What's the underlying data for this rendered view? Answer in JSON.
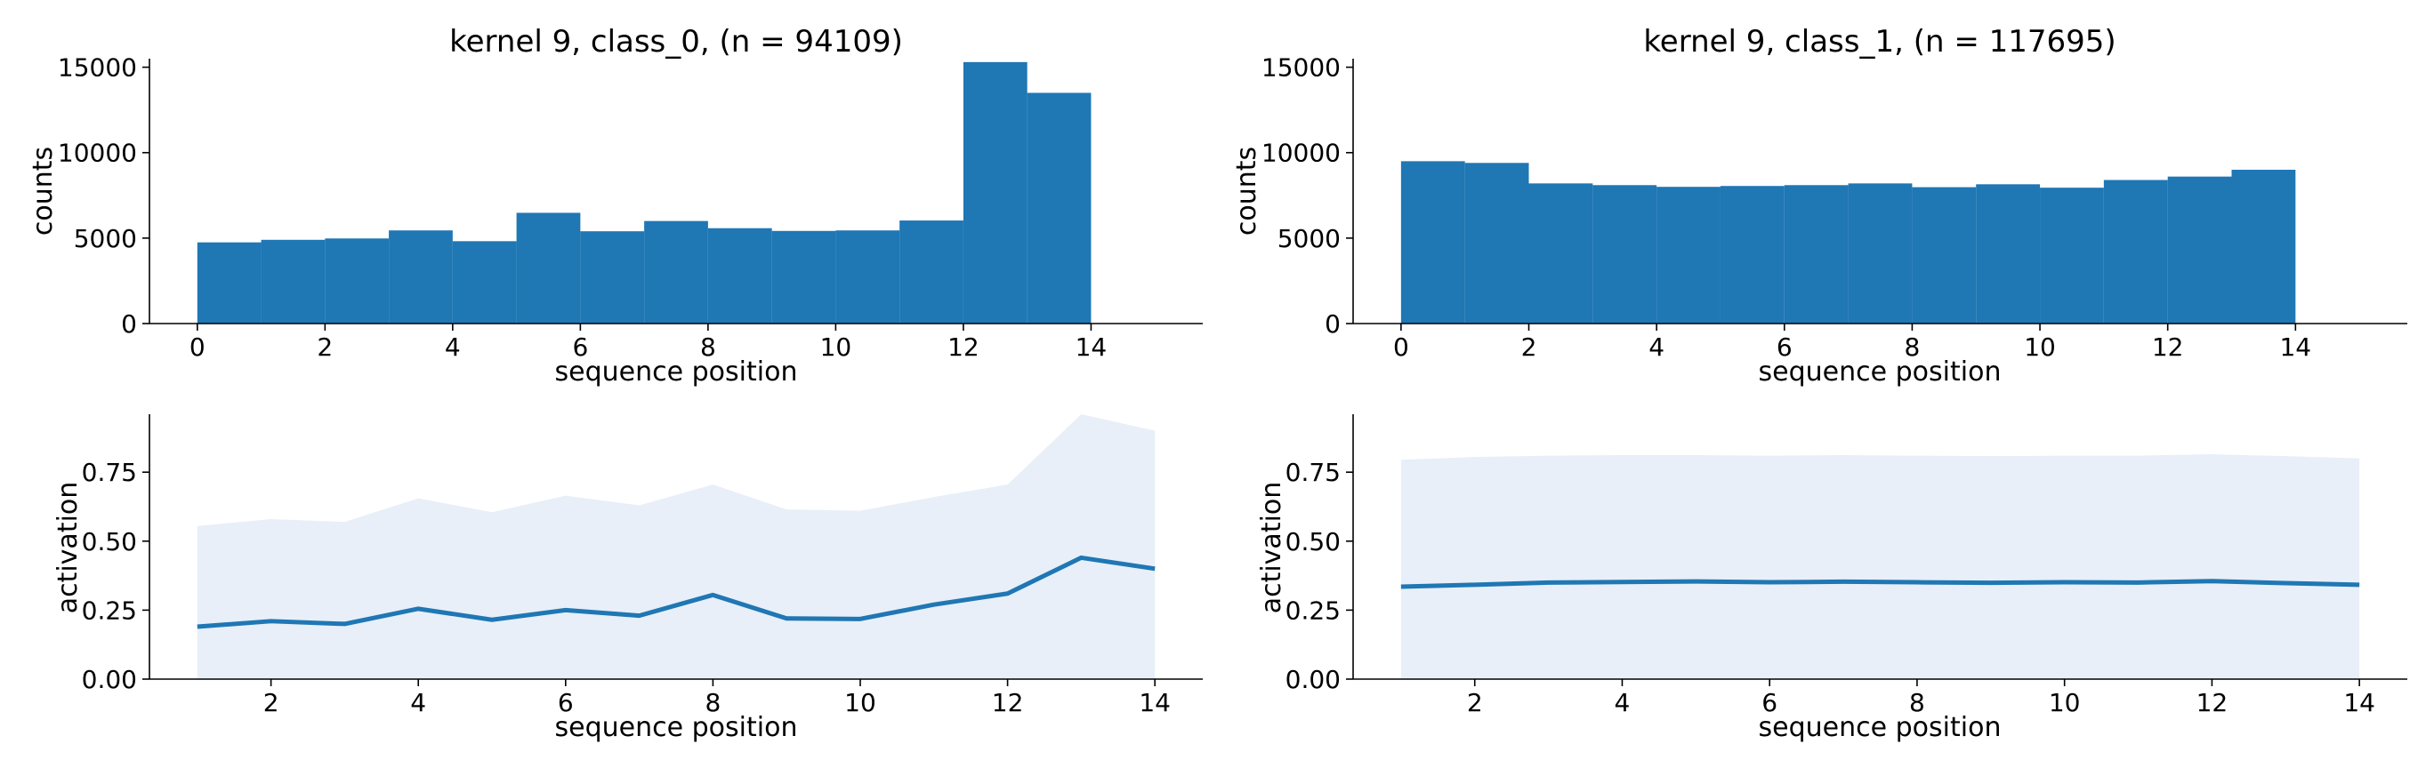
{
  "colors": {
    "bar": "#1f77b4",
    "line": "#1f77b4",
    "band": "#e8eff8",
    "axis": "#000000",
    "background": "#ffffff"
  },
  "chart_data": [
    {
      "id": "hist_class_0",
      "type": "bar",
      "title": "kernel 9, class_0, (n = 94109)",
      "xlabel": "sequence position",
      "ylabel": "counts",
      "xlim": [
        -0.75,
        15.75
      ],
      "ylim": [
        0,
        15500
      ],
      "xticks": [
        0,
        2,
        4,
        6,
        8,
        10,
        12,
        14
      ],
      "yticks": [
        0,
        5000,
        10000,
        15000
      ],
      "bin_edges": [
        0,
        1,
        2,
        3,
        4,
        5,
        6,
        7,
        8,
        9,
        10,
        11,
        12,
        13,
        14
      ],
      "values": [
        4750,
        4900,
        4980,
        5450,
        4820,
        6480,
        5400,
        6000,
        5580,
        5420,
        5450,
        6030,
        15300,
        13500
      ],
      "grid": false
    },
    {
      "id": "hist_class_1",
      "type": "bar",
      "title": "kernel 9, class_1, (n = 117695)",
      "xlabel": "sequence position",
      "ylabel": "counts",
      "xlim": [
        -0.75,
        15.75
      ],
      "ylim": [
        0,
        15500
      ],
      "xticks": [
        0,
        2,
        4,
        6,
        8,
        10,
        12,
        14
      ],
      "yticks": [
        0,
        5000,
        10000,
        15000
      ],
      "bin_edges": [
        0,
        1,
        2,
        3,
        4,
        5,
        6,
        7,
        8,
        9,
        10,
        11,
        12,
        13,
        14
      ],
      "values": [
        9500,
        9400,
        8200,
        8100,
        8000,
        8050,
        8100,
        8200,
        7980,
        8150,
        7950,
        8400,
        8600,
        9000
      ],
      "grid": false
    },
    {
      "id": "act_class_0",
      "type": "area",
      "title": "",
      "xlabel": "sequence position",
      "ylabel": "activation",
      "xlim": [
        0.35,
        14.65
      ],
      "ylim": [
        0,
        0.96
      ],
      "xticks": [
        2,
        4,
        6,
        8,
        10,
        12,
        14
      ],
      "yticks": [
        0.0,
        0.25,
        0.5,
        0.75
      ],
      "ytick_labels": [
        "0.00",
        "0.25",
        "0.50",
        "0.75"
      ],
      "x": [
        1,
        2,
        3,
        4,
        5,
        6,
        7,
        8,
        9,
        10,
        11,
        12,
        13,
        14
      ],
      "mean": [
        0.19,
        0.21,
        0.2,
        0.255,
        0.215,
        0.25,
        0.23,
        0.305,
        0.22,
        0.218,
        0.27,
        0.31,
        0.44,
        0.4
      ],
      "upper": [
        0.555,
        0.58,
        0.57,
        0.655,
        0.605,
        0.665,
        0.63,
        0.705,
        0.615,
        0.61,
        0.66,
        0.705,
        0.96,
        0.9
      ],
      "lower": [
        0,
        0,
        0,
        0,
        0,
        0,
        0,
        0,
        0,
        0,
        0,
        0,
        0,
        0
      ],
      "grid": false
    },
    {
      "id": "act_class_1",
      "type": "area",
      "title": "",
      "xlabel": "sequence position",
      "ylabel": "activation",
      "xlim": [
        0.35,
        14.65
      ],
      "ylim": [
        0,
        0.96
      ],
      "xticks": [
        2,
        4,
        6,
        8,
        10,
        12,
        14
      ],
      "yticks": [
        0.0,
        0.25,
        0.5,
        0.75
      ],
      "ytick_labels": [
        "0.00",
        "0.25",
        "0.50",
        "0.75"
      ],
      "x": [
        1,
        2,
        3,
        4,
        5,
        6,
        7,
        8,
        9,
        10,
        11,
        12,
        13,
        14
      ],
      "mean": [
        0.335,
        0.342,
        0.35,
        0.352,
        0.354,
        0.351,
        0.353,
        0.351,
        0.349,
        0.351,
        0.35,
        0.355,
        0.348,
        0.342
      ],
      "upper": [
        0.795,
        0.805,
        0.81,
        0.812,
        0.812,
        0.81,
        0.812,
        0.81,
        0.808,
        0.81,
        0.81,
        0.815,
        0.808,
        0.8
      ],
      "lower": [
        0,
        0,
        0,
        0,
        0,
        0,
        0,
        0,
        0,
        0,
        0,
        0,
        0,
        0
      ],
      "grid": false
    }
  ]
}
